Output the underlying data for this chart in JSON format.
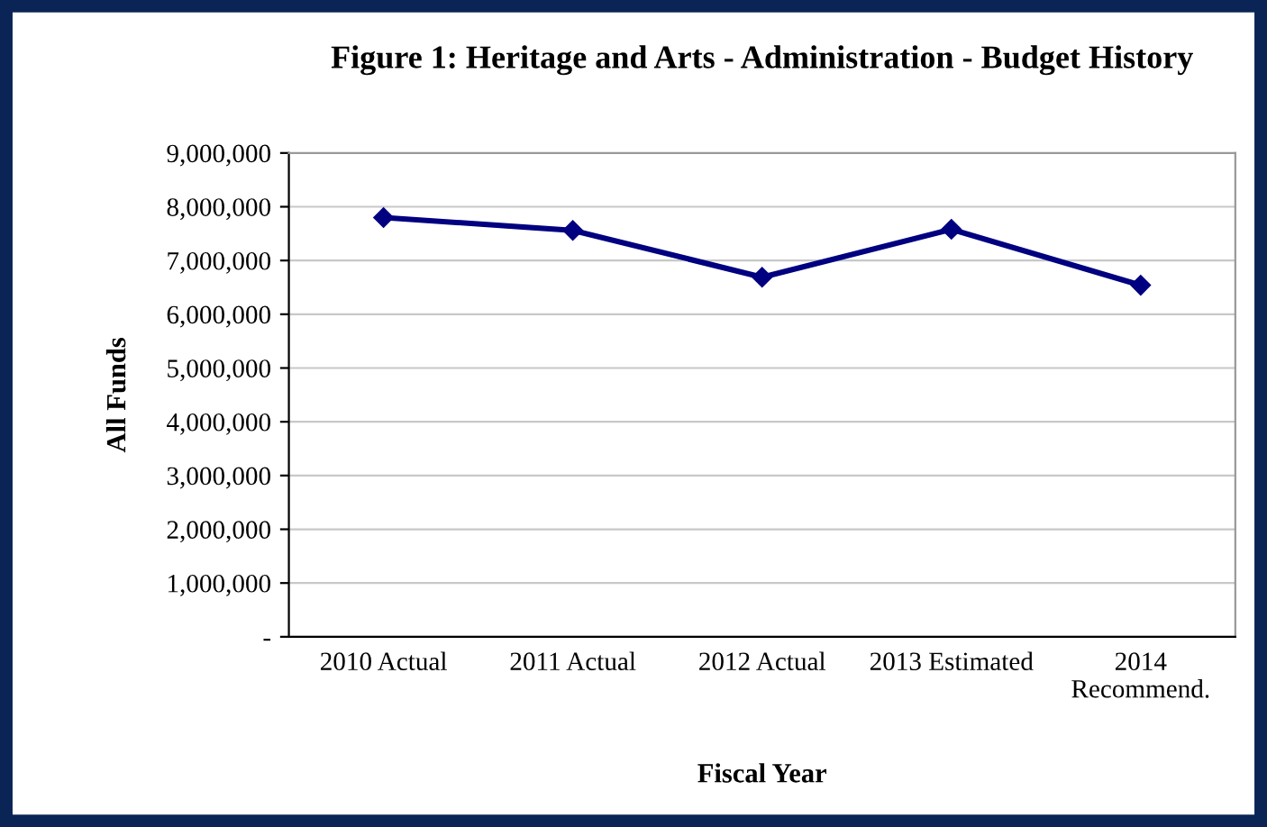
{
  "chart_data": {
    "type": "line",
    "title": "Figure 1: Heritage and Arts - Administration - Budget History",
    "xlabel": "Fiscal Year",
    "ylabel": "All Funds",
    "categories": [
      "2010 Actual",
      "2011 Actual",
      "2012 Actual",
      "2013 Estimated",
      "2014\nRecommend."
    ],
    "series": [
      {
        "color": "#000080",
        "values": [
          7800000,
          7560000,
          6690000,
          7580000,
          6540000
        ]
      }
    ],
    "ylim": [
      0,
      9000000
    ],
    "yticks": [
      {
        "value": 0,
        "label": "-"
      },
      {
        "value": 1000000,
        "label": "1,000,000"
      },
      {
        "value": 2000000,
        "label": "2,000,000"
      },
      {
        "value": 3000000,
        "label": "3,000,000"
      },
      {
        "value": 4000000,
        "label": "4,000,000"
      },
      {
        "value": 5000000,
        "label": "5,000,000"
      },
      {
        "value": 6000000,
        "label": "6,000,000"
      },
      {
        "value": 7000000,
        "label": "7,000,000"
      },
      {
        "value": 8000000,
        "label": "8,000,000"
      },
      {
        "value": 9000000,
        "label": "9,000,000"
      }
    ],
    "grid": "y",
    "marker": "diamond",
    "line_style": "solid",
    "legend": false
  }
}
